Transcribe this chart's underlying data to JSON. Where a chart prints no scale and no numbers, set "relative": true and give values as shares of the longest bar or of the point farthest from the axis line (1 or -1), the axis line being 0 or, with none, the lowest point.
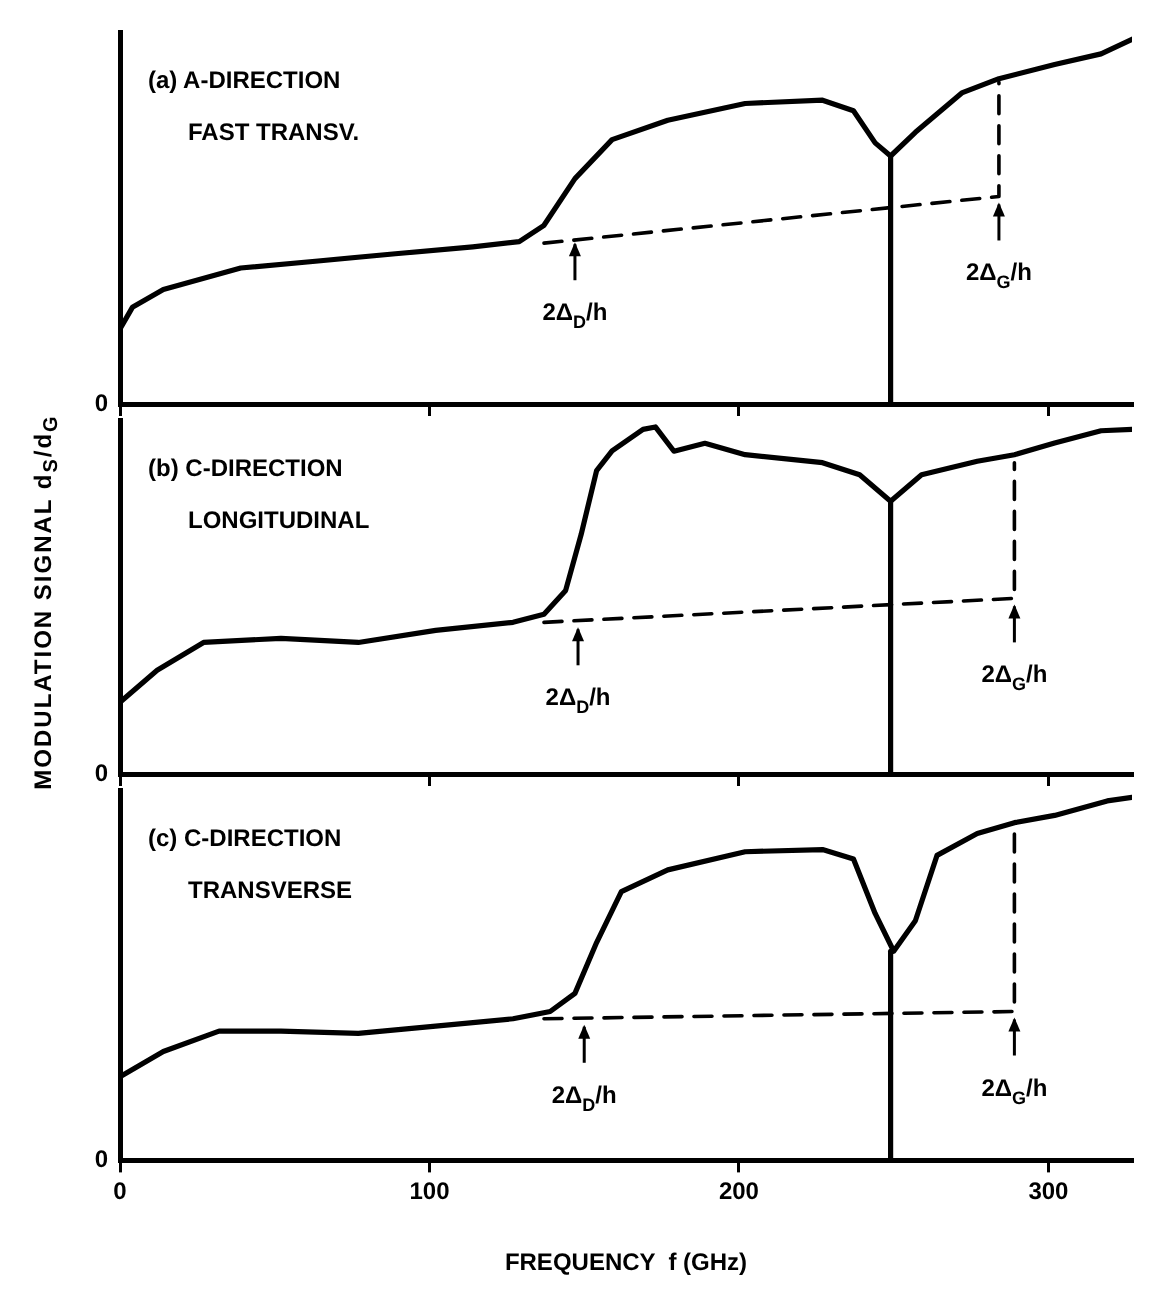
{
  "chart_data": [
    {
      "type": "line",
      "relative": true,
      "xlim": [
        0,
        327
      ],
      "xticks": [
        0,
        100,
        200,
        300
      ],
      "tick_labels": "y",
      "grid": false,
      "legend": false,
      "marker": "none",
      "annotations": [
        "0",
        "(a) A-DIRECTION",
        "FAST TRANSV.",
        {
          "text": "2Δ$_{D}$/h",
          "x": 147,
          "y": 0.46
        },
        {
          "text": "2Δ$_{G}$/h",
          "x": 284,
          "y": 0.569
        }
      ],
      "series": [
        {
          "color": "#000000",
          "line_style": "solid",
          "x": [
            0,
            4,
            14,
            39,
            64,
            89,
            114,
            129,
            137,
            147,
            159,
            177,
            202,
            227,
            237,
            244,
            249,
            257,
            272,
            284,
            302,
            317,
            327
          ],
          "values": [
            0.206,
            0.265,
            0.314,
            0.373,
            0.392,
            0.412,
            0.431,
            0.445,
            0.49,
            0.618,
            0.725,
            0.778,
            0.824,
            0.833,
            0.804,
            0.716,
            0.68,
            0.745,
            0.853,
            0.892,
            0.931,
            0.96,
            1
          ]
        },
        {
          "color": "#000000",
          "line_style": "dashed",
          "x": [
            137,
            284,
            284
          ],
          "values": [
            0.441,
            0.569,
            0.882
          ]
        },
        {
          "color": "#000000",
          "line_style": "solid",
          "x": [
            249,
            249
          ],
          "values": [
            0,
            0.68
          ]
        }
      ]
    },
    {
      "type": "line",
      "relative": true,
      "xlim": [
        0,
        327
      ],
      "xticks": [
        0,
        100,
        200,
        300
      ],
      "tick_labels": "y",
      "grid": false,
      "legend": false,
      "marker": "none",
      "ylabel": "MODULATION  SIGNAL  d$_{S}$/d$_{G}$",
      "annotations": [
        "0",
        "(b) C-DIRECTION",
        "LONGITUDINAL",
        {
          "text": "2Δ$_{D}$/h",
          "x": 148,
          "y": 0.44
        },
        {
          "text": "2Δ$_{G}$/h",
          "x": 289,
          "y": 0.506
        }
      ],
      "series": [
        {
          "color": "#000000",
          "line_style": "solid",
          "x": [
            0,
            12,
            27,
            52,
            77,
            102,
            127,
            137,
            144,
            149,
            154,
            159,
            169,
            173,
            179,
            189,
            202,
            227,
            239,
            249,
            259,
            277,
            289,
            302,
            317,
            327
          ],
          "values": [
            0.207,
            0.299,
            0.379,
            0.391,
            0.379,
            0.414,
            0.437,
            0.46,
            0.529,
            0.69,
            0.874,
            0.931,
            0.993,
            1,
            0.93,
            0.953,
            0.92,
            0.897,
            0.862,
            0.786,
            0.862,
            0.901,
            0.92,
            0.954,
            0.989,
            0.993
          ]
        },
        {
          "color": "#000000",
          "line_style": "dashed",
          "x": [
            137,
            289,
            289
          ],
          "values": [
            0.437,
            0.506,
            0.897
          ]
        },
        {
          "color": "#000000",
          "line_style": "solid",
          "x": [
            249,
            249
          ],
          "values": [
            0,
            0.786
          ]
        }
      ]
    },
    {
      "type": "line",
      "relative": true,
      "xlim": [
        0,
        327
      ],
      "xticks": [
        0,
        100,
        200,
        300
      ],
      "grid": false,
      "legend": false,
      "marker": "none",
      "xlabel": "FREQUENCY  f (GHz)",
      "annotations": [
        "0",
        "(c) C-DIRECTION",
        "TRANSVERSE",
        {
          "text": "2Δ$_{D}$/h",
          "x": 150,
          "y": 0.39
        },
        {
          "text": "2Δ$_{G}$/h",
          "x": 289,
          "y": 0.41
        }
      ],
      "series": [
        {
          "color": "#000000",
          "line_style": "solid",
          "x": [
            0,
            14,
            32,
            52,
            77,
            102,
            127,
            139,
            147,
            154,
            162,
            177,
            202,
            227,
            237,
            244,
            250,
            257,
            264,
            277,
            289,
            302,
            319,
            327
          ],
          "values": [
            0.23,
            0.3,
            0.356,
            0.356,
            0.35,
            0.37,
            0.39,
            0.41,
            0.46,
            0.6,
            0.74,
            0.8,
            0.85,
            0.856,
            0.83,
            0.68,
            0.576,
            0.66,
            0.84,
            0.9,
            0.93,
            0.95,
            0.99,
            1
          ]
        },
        {
          "color": "#000000",
          "line_style": "dashed",
          "x": [
            137,
            289,
            289
          ],
          "values": [
            0.39,
            0.41,
            0.92
          ]
        },
        {
          "color": "#000000",
          "line_style": "solid",
          "x": [
            249,
            249
          ],
          "values": [
            0,
            0.576
          ]
        }
      ]
    }
  ]
}
